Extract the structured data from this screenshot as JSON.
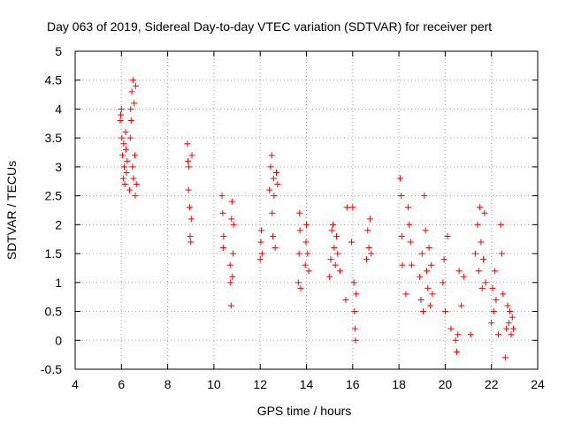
{
  "chart_data": {
    "type": "scatter",
    "title": "Day 063 of 2019, Sidereal Day-to-day VTEC variation (SDTVAR) for receiver pert",
    "xlabel": "GPS time / hours",
    "ylabel": "SDTVAR / TECUs",
    "xlim": [
      4,
      24
    ],
    "ylim": [
      -0.5,
      5
    ],
    "xticks": [
      "4",
      "6",
      "8",
      "10",
      "12",
      "14",
      "16",
      "18",
      "20",
      "22",
      "24"
    ],
    "yticks": [
      "-0.5",
      "0",
      "0.5",
      "1",
      "1.5",
      "2",
      "2.5",
      "3",
      "3.5",
      "4",
      "4.5",
      "5"
    ],
    "grid": true,
    "marker": "+",
    "color": "#ff0000",
    "series": [
      {
        "name": "SDTVAR",
        "points": [
          [
            5.95,
            3.8
          ],
          [
            5.97,
            3.9
          ],
          [
            6.0,
            4.0
          ],
          [
            6.02,
            3.5
          ],
          [
            6.05,
            3.2
          ],
          [
            6.08,
            2.8
          ],
          [
            6.1,
            3.4
          ],
          [
            6.12,
            3.0
          ],
          [
            6.15,
            2.7
          ],
          [
            6.18,
            3.6
          ],
          [
            6.2,
            3.3
          ],
          [
            6.22,
            2.9
          ],
          [
            6.25,
            3.1
          ],
          [
            6.35,
            2.6
          ],
          [
            6.38,
            3.5
          ],
          [
            6.4,
            4.0
          ],
          [
            6.42,
            3.8
          ],
          [
            6.45,
            4.3
          ],
          [
            6.48,
            3.0
          ],
          [
            6.5,
            4.5
          ],
          [
            6.52,
            2.8
          ],
          [
            6.55,
            4.1
          ],
          [
            6.58,
            3.2
          ],
          [
            6.6,
            2.5
          ],
          [
            6.62,
            4.4
          ],
          [
            6.65,
            2.7
          ],
          [
            8.85,
            3.4
          ],
          [
            8.88,
            3.1
          ],
          [
            8.9,
            2.6
          ],
          [
            8.92,
            3.0
          ],
          [
            8.95,
            2.3
          ],
          [
            8.97,
            1.8
          ],
          [
            9.0,
            1.7
          ],
          [
            9.02,
            2.1
          ],
          [
            9.05,
            3.2
          ],
          [
            10.35,
            2.5
          ],
          [
            10.38,
            2.2
          ],
          [
            10.4,
            1.6
          ],
          [
            10.42,
            1.8
          ],
          [
            10.7,
            1.3
          ],
          [
            10.72,
            1.0
          ],
          [
            10.74,
            0.6
          ],
          [
            10.76,
            2.1
          ],
          [
            10.78,
            2.4
          ],
          [
            10.8,
            1.1
          ],
          [
            10.83,
            1.5
          ],
          [
            10.85,
            2.0
          ],
          [
            12.0,
            1.4
          ],
          [
            12.03,
            1.7
          ],
          [
            12.05,
            1.9
          ],
          [
            12.08,
            1.5
          ],
          [
            12.4,
            2.6
          ],
          [
            12.45,
            3.0
          ],
          [
            12.5,
            3.2
          ],
          [
            12.52,
            2.2
          ],
          [
            12.55,
            1.8
          ],
          [
            12.58,
            2.8
          ],
          [
            12.6,
            2.5
          ],
          [
            12.65,
            1.6
          ],
          [
            12.7,
            2.9
          ],
          [
            12.75,
            2.7
          ],
          [
            13.65,
            1.0
          ],
          [
            13.68,
            1.5
          ],
          [
            13.7,
            2.2
          ],
          [
            13.72,
            1.9
          ],
          [
            13.75,
            0.9
          ],
          [
            13.95,
            1.3
          ],
          [
            13.98,
            1.7
          ],
          [
            14.0,
            2.0
          ],
          [
            14.05,
            1.5
          ],
          [
            14.1,
            1.2
          ],
          [
            15.0,
            1.1
          ],
          [
            15.05,
            1.4
          ],
          [
            15.1,
            1.9
          ],
          [
            15.15,
            2.0
          ],
          [
            15.2,
            1.6
          ],
          [
            15.25,
            1.3
          ],
          [
            15.3,
            1.8
          ],
          [
            15.35,
            1.5
          ],
          [
            15.45,
            1.2
          ],
          [
            15.7,
            0.7
          ],
          [
            15.75,
            2.3
          ],
          [
            15.95,
            1.7
          ],
          [
            16.0,
            2.3
          ],
          [
            16.05,
            1.0
          ],
          [
            16.08,
            0.5
          ],
          [
            16.1,
            0.2
          ],
          [
            16.12,
            0.0
          ],
          [
            16.15,
            0.8
          ],
          [
            16.6,
            1.4
          ],
          [
            16.65,
            1.9
          ],
          [
            16.7,
            1.6
          ],
          [
            16.75,
            2.1
          ],
          [
            16.8,
            1.5
          ],
          [
            18.05,
            2.8
          ],
          [
            18.1,
            2.5
          ],
          [
            18.12,
            1.8
          ],
          [
            18.15,
            1.3
          ],
          [
            18.3,
            0.8
          ],
          [
            18.4,
            2.3
          ],
          [
            18.45,
            2.0
          ],
          [
            18.5,
            1.7
          ],
          [
            18.55,
            1.3
          ],
          [
            18.9,
            1.1
          ],
          [
            18.95,
            0.7
          ],
          [
            19.0,
            1.5
          ],
          [
            19.05,
            0.5
          ],
          [
            19.1,
            2.5
          ],
          [
            19.15,
            1.9
          ],
          [
            19.2,
            1.2
          ],
          [
            19.25,
            0.9
          ],
          [
            19.3,
            1.6
          ],
          [
            19.35,
            0.6
          ],
          [
            19.4,
            1.3
          ],
          [
            19.45,
            0.8
          ],
          [
            19.9,
            1.0
          ],
          [
            19.95,
            1.4
          ],
          [
            20.0,
            0.5
          ],
          [
            20.1,
            1.8
          ],
          [
            20.25,
            0.2
          ],
          [
            20.45,
            0.0
          ],
          [
            20.5,
            -0.2
          ],
          [
            20.55,
            0.1
          ],
          [
            20.6,
            1.2
          ],
          [
            20.7,
            0.6
          ],
          [
            20.8,
            1.1
          ],
          [
            21.1,
            0.1
          ],
          [
            21.3,
            1.5
          ],
          [
            21.4,
            2.0
          ],
          [
            21.45,
            1.2
          ],
          [
            21.5,
            2.3
          ],
          [
            21.55,
            1.7
          ],
          [
            21.6,
            0.9
          ],
          [
            21.65,
            1.4
          ],
          [
            21.7,
            2.2
          ],
          [
            21.75,
            1.0
          ],
          [
            22.0,
            0.3
          ],
          [
            22.05,
            0.9
          ],
          [
            22.1,
            0.5
          ],
          [
            22.15,
            1.2
          ],
          [
            22.2,
            0.7
          ],
          [
            22.3,
            0.1
          ],
          [
            22.4,
            2.0
          ],
          [
            22.45,
            1.5
          ],
          [
            22.5,
            0.8
          ],
          [
            22.6,
            -0.3
          ],
          [
            22.65,
            0.2
          ],
          [
            22.7,
            0.6
          ],
          [
            22.75,
            0.3
          ],
          [
            22.8,
            0.5
          ],
          [
            22.85,
            0.1
          ],
          [
            22.9,
            0.4
          ],
          [
            22.95,
            0.2
          ]
        ]
      }
    ]
  }
}
